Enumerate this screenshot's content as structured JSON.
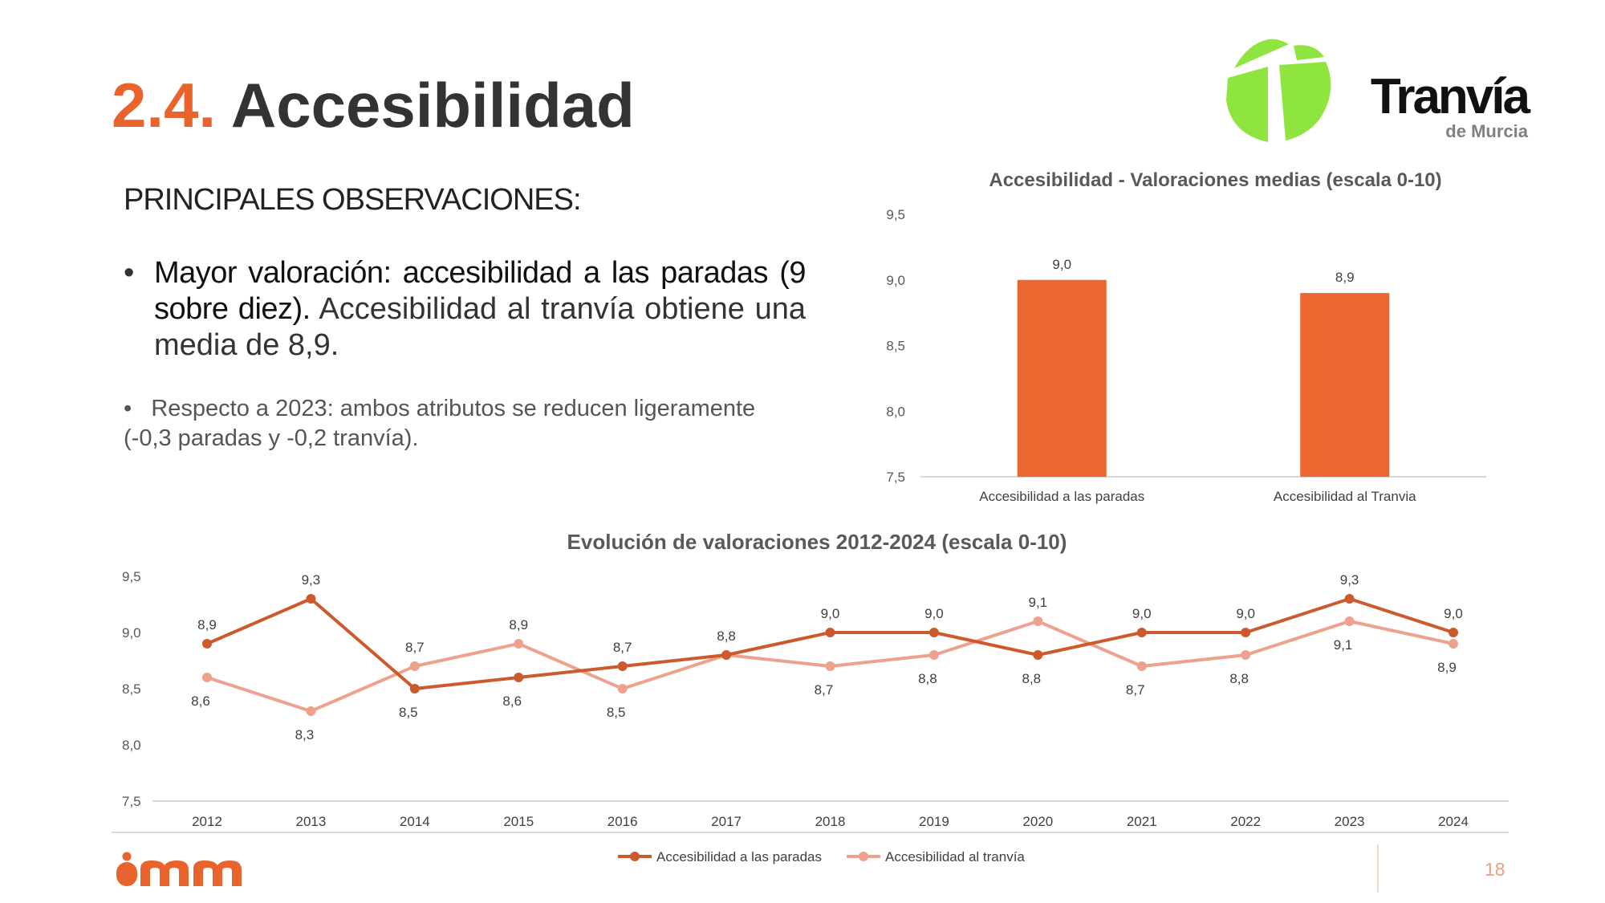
{
  "slide": {
    "title_number": "2.4.",
    "title_text": "Accesibilidad",
    "observations_heading": "PRINCIPALES OBSERVACIONES:",
    "bullet1_strong": "Mayor valoración: accesibilidad a las paradas (9 sobre diez).",
    "bullet1_rest": " Accesibilidad al tranvía obtiene una media de 8,9.",
    "bullet2_line1": "Respecto a 2023: ambos atributos se reducen ligeramente",
    "bullet2_line2": "(-0,3 paradas y -0,2 tranvía).",
    "page_number": "18"
  },
  "logo": {
    "brand": "Tranvía",
    "sub": "de Murcia",
    "green": "#8ee53f",
    "footer_brand": "imm"
  },
  "colors": {
    "accent": "#e8642c",
    "bar": "#ec6730",
    "series_paradas": "#cc5a2c",
    "series_tranvia": "#eea28e"
  },
  "chart_data": [
    {
      "type": "bar",
      "title": "Accesibilidad - Valoraciones medias (escala 0-10)",
      "categories": [
        "Accesibilidad a las paradas",
        "Accesibilidad al Tranvia"
      ],
      "values": [
        9.0,
        8.9
      ],
      "value_labels": [
        "9,0",
        "8,9"
      ],
      "ylim": [
        7.5,
        9.5
      ],
      "yticks": [
        "7,5",
        "8,0",
        "8,5",
        "9,0",
        "9,5"
      ],
      "grid": false
    },
    {
      "type": "line",
      "title": "Evolución de valoraciones 2012-2024 (escala 0-10)",
      "categories": [
        "2012",
        "2013",
        "2014",
        "2015",
        "2016",
        "2017",
        "2018",
        "2019",
        "2020",
        "2021",
        "2022",
        "2023",
        "2024"
      ],
      "series": [
        {
          "name": "Accesibilidad a las paradas",
          "values": [
            8.9,
            9.3,
            8.5,
            8.6,
            8.7,
            8.8,
            9.0,
            9.0,
            8.8,
            9.0,
            9.0,
            9.3,
            9.0
          ],
          "labels": [
            "8,9",
            "9,3",
            "8,5",
            "8,6",
            "8,7",
            "8,8",
            "9,0",
            "9,0",
            "8,8",
            "9,0",
            "9,0",
            "9,3",
            "9,0"
          ]
        },
        {
          "name": "Accesibilidad al tranvía",
          "values": [
            8.6,
            8.3,
            8.7,
            8.9,
            8.5,
            8.8,
            8.7,
            8.8,
            9.1,
            8.7,
            8.8,
            9.1,
            8.9
          ],
          "labels": [
            "8,6",
            "8,3",
            "8,7",
            "8,9",
            "8,5",
            "",
            "8,7",
            "8,8",
            "9,1",
            "8,7",
            "8,8",
            "9,1",
            "8,9"
          ]
        }
      ],
      "ylim": [
        7.5,
        9.5
      ],
      "yticks": [
        "7,5",
        "8,0",
        "8,5",
        "9,0",
        "9,5"
      ],
      "legend": "bottom",
      "grid": false
    }
  ]
}
